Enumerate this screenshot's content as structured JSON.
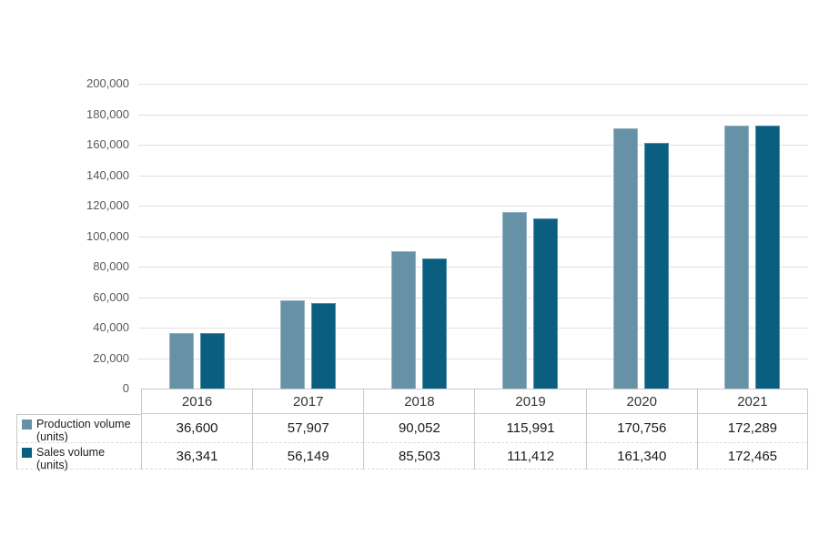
{
  "chart_data": {
    "type": "bar",
    "title": "",
    "xlabel": "",
    "ylabel": "",
    "categories": [
      "2016",
      "2017",
      "2018",
      "2019",
      "2020",
      "2021"
    ],
    "series": [
      {
        "name": "Production volume (units)",
        "key": "production",
        "color": "#6791a7",
        "values": [
          36600,
          57907,
          90052,
          115991,
          170756,
          172289
        ],
        "display_values": [
          "36,600",
          "57,907",
          "90,052",
          "115,991",
          "170,756",
          "172,289"
        ]
      },
      {
        "name": "Sales volume (units)",
        "key": "sales",
        "color": "#0a5f80",
        "values": [
          36341,
          56149,
          85503,
          111412,
          161340,
          172465
        ],
        "display_values": [
          "36,341",
          "56,149",
          "85,503",
          "111,412",
          "161,340",
          "172,465"
        ]
      }
    ],
    "ylim": [
      0,
      200000
    ],
    "ytick_step": 20000,
    "y_tick_labels": [
      "0",
      "20,000",
      "40,000",
      "60,000",
      "80,000",
      "100,000",
      "120,000",
      "140,000",
      "160,000",
      "180,000",
      "200,000"
    ],
    "grid": true,
    "legend_position": "table-left"
  },
  "colors": {
    "production": "#6791a7",
    "sales": "#0a5f80",
    "gridline": "#e0e0e0",
    "table_border": "#c9c9c9",
    "table_border_light": "#d9d9d9",
    "axis_label": "#595959",
    "background": "#ffffff"
  }
}
